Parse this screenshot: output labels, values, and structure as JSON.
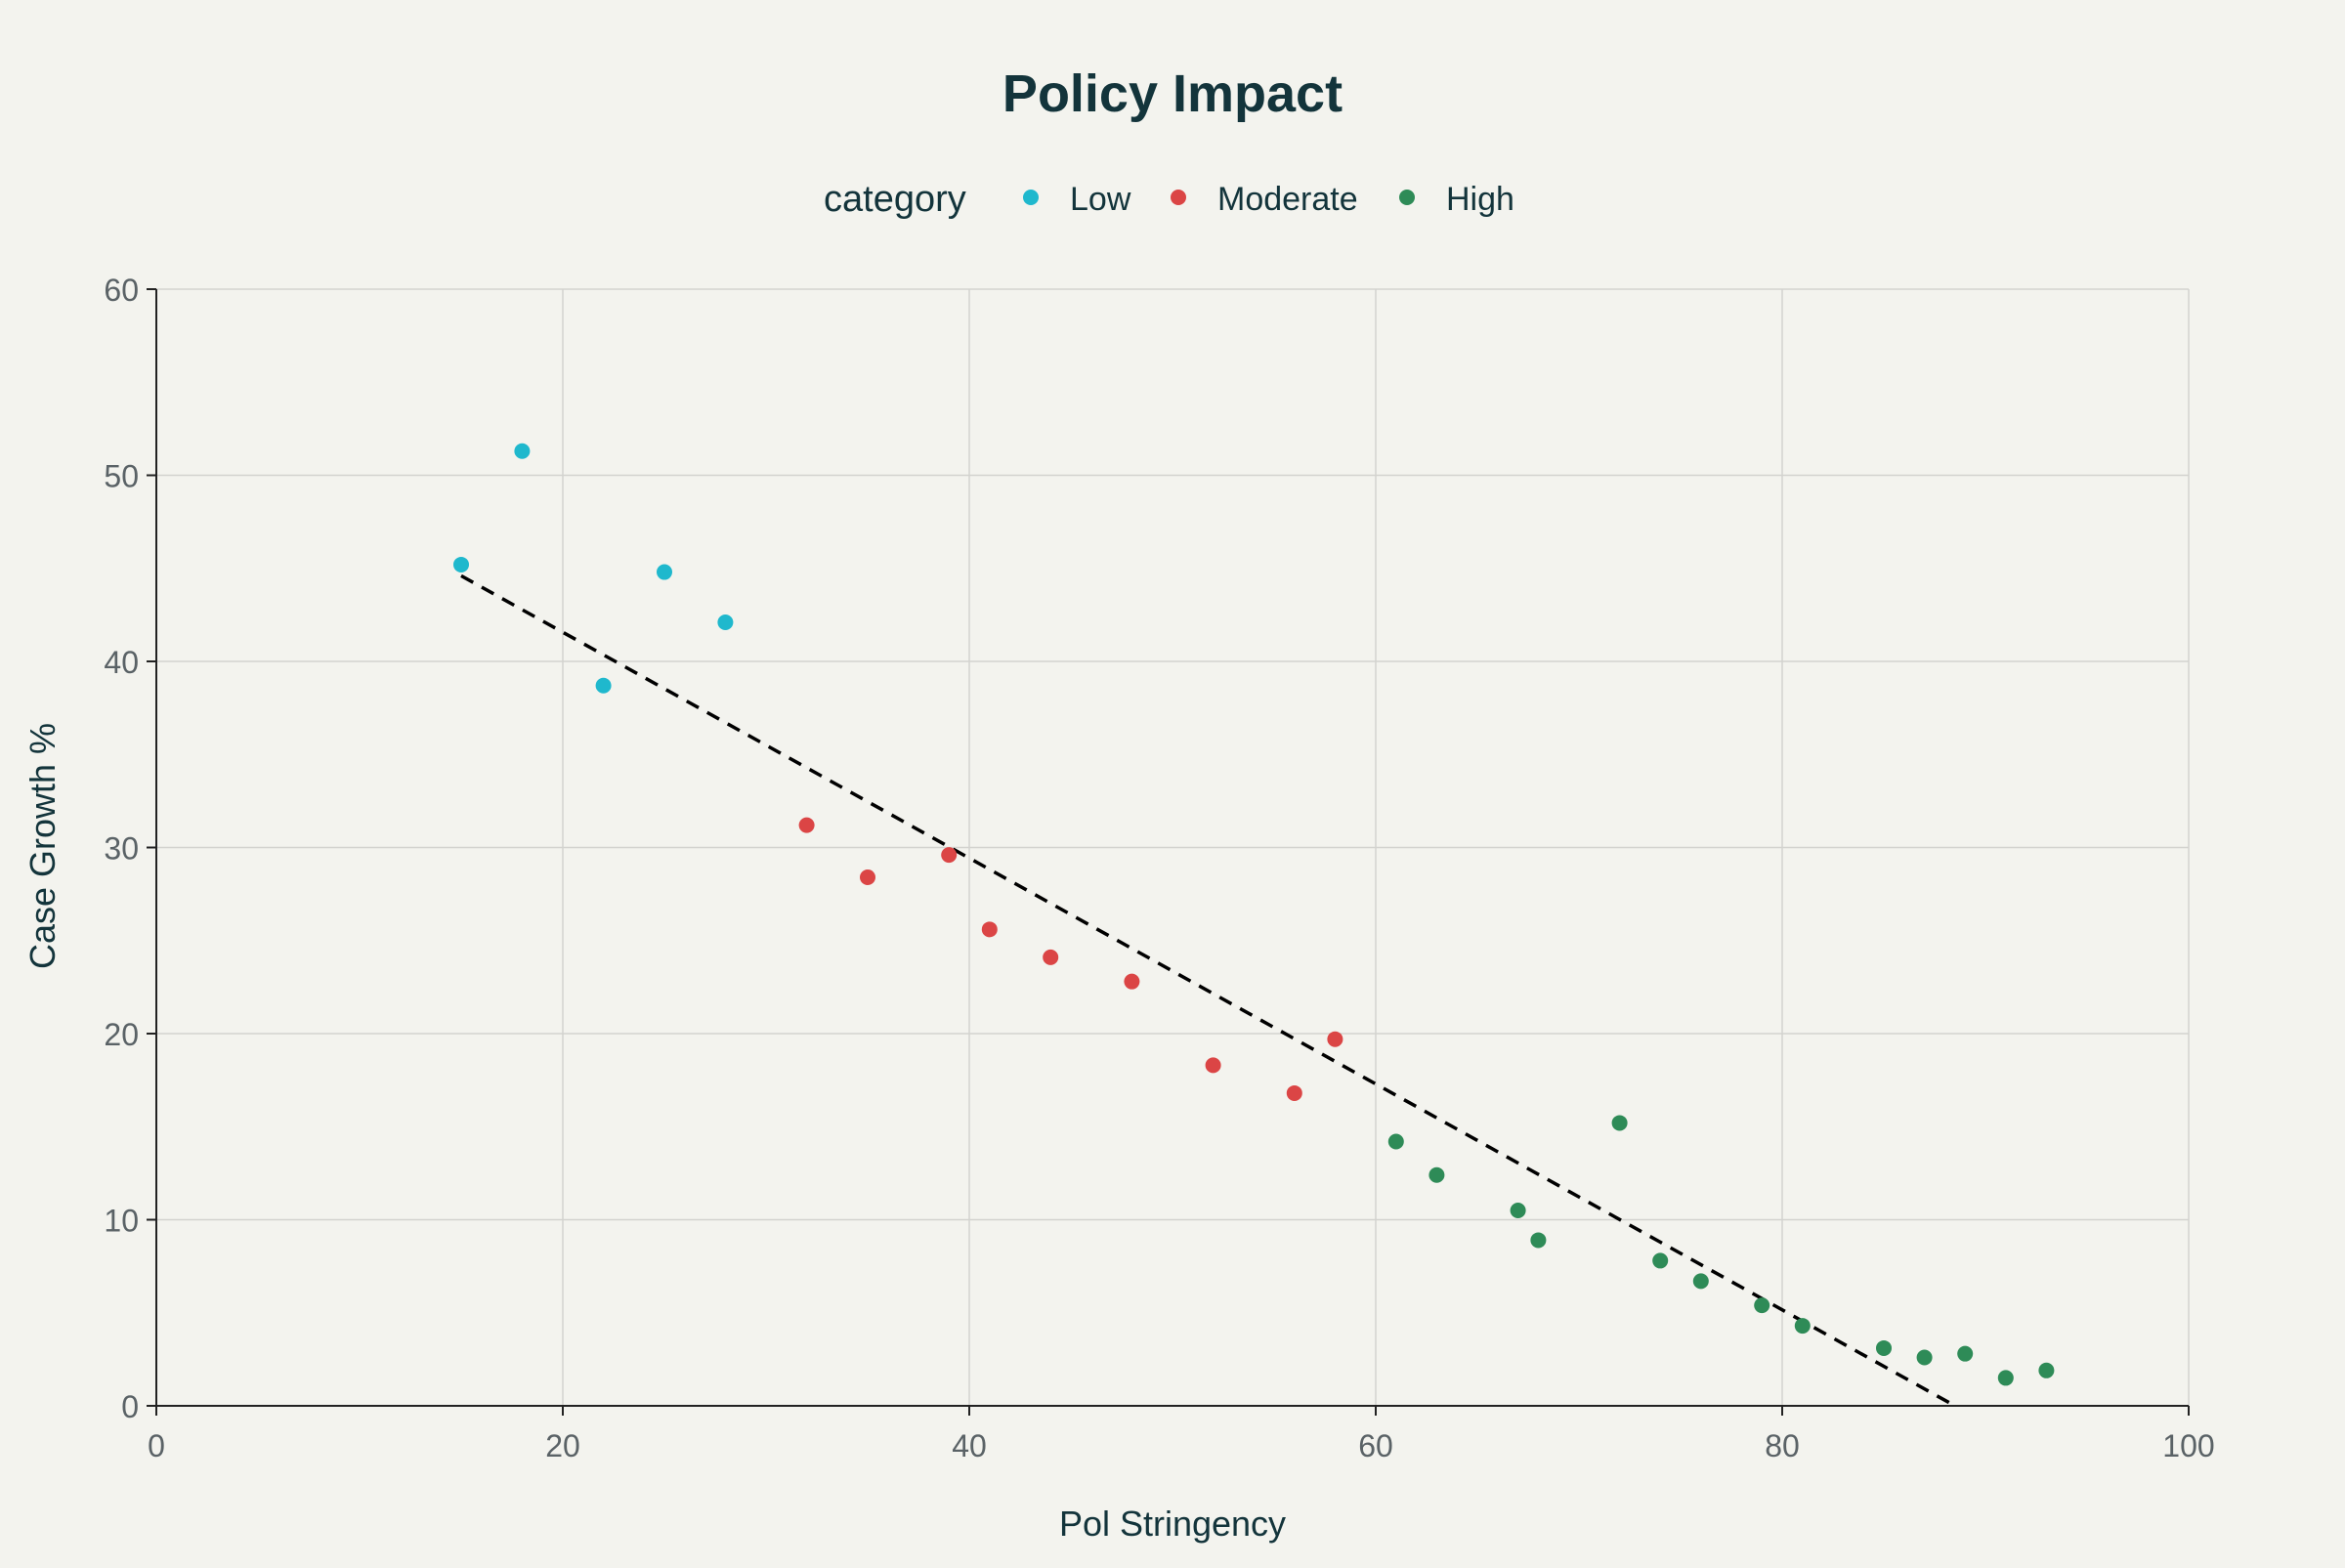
{
  "colors": {
    "background": "#f3f3ee",
    "text": "#13343b",
    "tick_text": "#5a6266",
    "grid": "#d3d3cf",
    "axis": "#222222",
    "trendline": "#000000"
  },
  "chart_data": {
    "type": "scatter",
    "title": "Policy Impact",
    "xlabel": "Pol Stringency",
    "ylabel": "Case Growth %",
    "xlim": [
      0,
      100
    ],
    "ylim": [
      0,
      60
    ],
    "xticks": [
      0,
      20,
      40,
      60,
      80,
      100
    ],
    "yticks": [
      0,
      10,
      20,
      30,
      40,
      50,
      60
    ],
    "grid": true,
    "legend": {
      "title": "category",
      "placement": "top-center",
      "orientation": "horizontal"
    },
    "series": [
      {
        "name": "Low",
        "color": "#1fb8cd",
        "points": [
          {
            "x": 15,
            "y": 45.2
          },
          {
            "x": 18,
            "y": 51.3
          },
          {
            "x": 22,
            "y": 38.7
          },
          {
            "x": 25,
            "y": 44.8
          },
          {
            "x": 28,
            "y": 42.1
          }
        ]
      },
      {
        "name": "Moderate",
        "color": "#db4545",
        "points": [
          {
            "x": 32,
            "y": 31.2
          },
          {
            "x": 35,
            "y": 28.4
          },
          {
            "x": 39,
            "y": 29.6
          },
          {
            "x": 41,
            "y": 25.6
          },
          {
            "x": 44,
            "y": 24.1
          },
          {
            "x": 48,
            "y": 22.8
          },
          {
            "x": 52,
            "y": 18.3
          },
          {
            "x": 56,
            "y": 16.8
          },
          {
            "x": 58,
            "y": 19.7
          }
        ]
      },
      {
        "name": "High",
        "color": "#2e8b57",
        "points": [
          {
            "x": 61,
            "y": 14.2
          },
          {
            "x": 63,
            "y": 12.4
          },
          {
            "x": 67,
            "y": 10.5
          },
          {
            "x": 68,
            "y": 8.9
          },
          {
            "x": 72,
            "y": 15.2
          },
          {
            "x": 74,
            "y": 7.8
          },
          {
            "x": 76,
            "y": 6.7
          },
          {
            "x": 79,
            "y": 5.4
          },
          {
            "x": 81,
            "y": 4.3
          },
          {
            "x": 85,
            "y": 3.1
          },
          {
            "x": 87,
            "y": 2.6
          },
          {
            "x": 89,
            "y": 2.8
          },
          {
            "x": 91,
            "y": 1.5
          },
          {
            "x": 93,
            "y": 1.9
          }
        ]
      }
    ],
    "trendline": {
      "style": "dashed",
      "x": [
        15,
        88.5
      ],
      "y": [
        44.6,
        0
      ]
    }
  }
}
